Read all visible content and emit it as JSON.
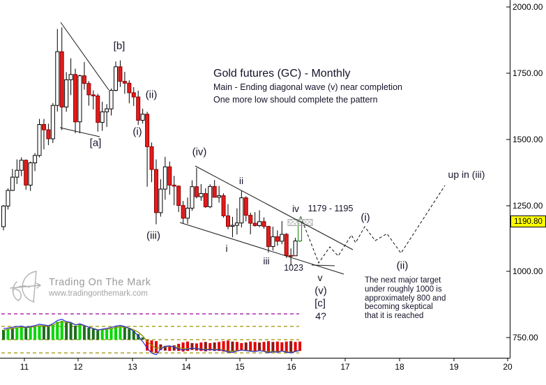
{
  "header": {
    "title": "Gold futures (GC) - Monthly",
    "subtitle1": "Main - Ending diagonal wave (v) near completion",
    "subtitle2": "One more low should complete the pattern",
    "text_color": "#14142a"
  },
  "watermark": {
    "name": "Trading On The Mark",
    "url": "www.tradingonthemark.com",
    "color": "#9a9a9a"
  },
  "price_axis": {
    "ticks": [
      "2000.00",
      "1750.00",
      "1500.00",
      "1250.00",
      "1000.00",
      "750.00"
    ],
    "last_price": "1190.80",
    "last_price_bg": "#ffff00"
  },
  "time_axis": {
    "ticks": [
      "11",
      "12",
      "13",
      "14",
      "15",
      "16",
      "17",
      "18",
      "19",
      "20"
    ]
  },
  "note": {
    "lines": [
      "The next major target",
      "under roughly 1000 is",
      "approximately 800 and",
      "becoming skeptical",
      "that it is reached"
    ]
  },
  "colors": {
    "up_fill": "#ffffff",
    "up_stroke": "#000000",
    "down_fill": "#e51c1c",
    "down_stroke": "#8b0000",
    "current_stroke": "#0b8a0b",
    "wick": "#000000",
    "trendline": "#1a1a1a",
    "projection": "#222222",
    "hatch_box_border": "#a9a9a9",
    "hatch_box_line": "#c4c4c4",
    "ind_green_bright": "#00d800",
    "ind_green_dark": "#1d6e1d",
    "ind_red_bright": "#e40000",
    "ind_red_dark": "#8c1717",
    "ind_blue_line": "#2b2bd4",
    "ind_olive_line": "#8f8f00",
    "thr_purple": "#9c009c",
    "thr_olive": "#9c9000",
    "axis": "#000000",
    "label_color": "#14142a"
  },
  "chart_data": {
    "type": "candlestick+histogram",
    "title": "Gold futures (GC) - Monthly",
    "ylabel": "price",
    "y_ticks": [
      2000,
      1750,
      1500,
      1250,
      1000,
      750
    ],
    "x_tick_years": [
      11,
      12,
      13,
      14,
      15,
      16,
      17,
      18,
      19,
      20
    ],
    "ohlc_monthly": [
      [
        1170,
        1252,
        1156,
        1248
      ],
      [
        1248,
        1315,
        1235,
        1307
      ],
      [
        1307,
        1388,
        1305,
        1357
      ],
      [
        1357,
        1424,
        1331,
        1383
      ],
      [
        1383,
        1432,
        1361,
        1421
      ],
      [
        1421,
        1424,
        1309,
        1327
      ],
      [
        1327,
        1416,
        1305,
        1411
      ],
      [
        1411,
        1448,
        1380,
        1439
      ],
      [
        1439,
        1577,
        1432,
        1556
      ],
      [
        1556,
        1577,
        1462,
        1536
      ],
      [
        1536,
        1559,
        1478,
        1502
      ],
      [
        1502,
        1637,
        1486,
        1628
      ],
      [
        1628,
        1917,
        1605,
        1831
      ],
      [
        1831,
        1923,
        1535,
        1622
      ],
      [
        1622,
        1754,
        1604,
        1725
      ],
      [
        1725,
        1806,
        1667,
        1745
      ],
      [
        1745,
        1767,
        1523,
        1566
      ],
      [
        1566,
        1744,
        1523,
        1740
      ],
      [
        1740,
        1792,
        1688,
        1711
      ],
      [
        1711,
        1720,
        1627,
        1668
      ],
      [
        1668,
        1685,
        1613,
        1664
      ],
      [
        1664,
        1672,
        1529,
        1564
      ],
      [
        1564,
        1642,
        1532,
        1604
      ],
      [
        1604,
        1633,
        1547,
        1615
      ],
      [
        1615,
        1692,
        1590,
        1685
      ],
      [
        1685,
        1794,
        1681,
        1774
      ],
      [
        1774,
        1798,
        1698,
        1719
      ],
      [
        1719,
        1755,
        1672,
        1712
      ],
      [
        1712,
        1723,
        1636,
        1676
      ],
      [
        1676,
        1697,
        1626,
        1660
      ],
      [
        1660,
        1684,
        1554,
        1572
      ],
      [
        1572,
        1616,
        1560,
        1595
      ],
      [
        1595,
        1604,
        1321,
        1472
      ],
      [
        1472,
        1488,
        1338,
        1386
      ],
      [
        1386,
        1424,
        1179,
        1223
      ],
      [
        1223,
        1349,
        1208,
        1312
      ],
      [
        1312,
        1434,
        1272,
        1396
      ],
      [
        1396,
        1416,
        1291,
        1327
      ],
      [
        1327,
        1362,
        1251,
        1323
      ],
      [
        1323,
        1326,
        1225,
        1250
      ],
      [
        1250,
        1267,
        1181,
        1202
      ],
      [
        1202,
        1280,
        1181,
        1240
      ],
      [
        1240,
        1345,
        1230,
        1321
      ],
      [
        1321,
        1392,
        1277,
        1283
      ],
      [
        1283,
        1331,
        1268,
        1295
      ],
      [
        1295,
        1315,
        1241,
        1245
      ],
      [
        1245,
        1330,
        1240,
        1322
      ],
      [
        1322,
        1346,
        1280,
        1281
      ],
      [
        1281,
        1324,
        1261,
        1287
      ],
      [
        1287,
        1296,
        1204,
        1211
      ],
      [
        1211,
        1255,
        1160,
        1171
      ],
      [
        1171,
        1207,
        1130,
        1175
      ],
      [
        1175,
        1239,
        1140,
        1184
      ],
      [
        1184,
        1307,
        1167,
        1279
      ],
      [
        1279,
        1285,
        1190,
        1213
      ],
      [
        1213,
        1223,
        1141,
        1183
      ],
      [
        1183,
        1225,
        1170,
        1174
      ],
      [
        1174,
        1232,
        1168,
        1189
      ],
      [
        1189,
        1205,
        1162,
        1171
      ],
      [
        1171,
        1173,
        1072,
        1095
      ],
      [
        1095,
        1170,
        1080,
        1132
      ],
      [
        1132,
        1156,
        1098,
        1115
      ],
      [
        1115,
        1191,
        1104,
        1141
      ],
      [
        1141,
        1146,
        1052,
        1061
      ],
      [
        1061,
        1088,
        1023,
        1060
      ],
      [
        1060,
        1128,
        1060,
        1116
      ],
      [
        1116,
        1205,
        1112,
        1190.8
      ]
    ],
    "annotations": [
      {
        "text": "[b]",
        "x": 171,
        "y": 66,
        "size": 15
      },
      {
        "text": "(ii)",
        "x": 217,
        "y": 136,
        "size": 15
      },
      {
        "text": "(i)",
        "x": 197,
        "y": 189,
        "size": 15
      },
      {
        "text": "[a]",
        "x": 137,
        "y": 205,
        "size": 15
      },
      {
        "text": "(iv)",
        "x": 286,
        "y": 218,
        "size": 15
      },
      {
        "text": "ii",
        "x": 346,
        "y": 259,
        "size": 14
      },
      {
        "text": "(iii)",
        "x": 220,
        "y": 338,
        "size": 15
      },
      {
        "text": "i",
        "x": 325,
        "y": 356,
        "size": 14
      },
      {
        "text": "iii",
        "x": 382,
        "y": 374,
        "size": 14
      },
      {
        "text": "iv",
        "x": 424,
        "y": 299,
        "size": 14
      },
      {
        "text": "1179 - 1195",
        "x": 474,
        "y": 299,
        "size": 12.5
      },
      {
        "text": "1023",
        "x": 421,
        "y": 384,
        "size": 12.5
      },
      {
        "text": "v",
        "x": 459,
        "y": 398,
        "size": 14
      },
      {
        "text": "(v)",
        "x": 460,
        "y": 417,
        "size": 15
      },
      {
        "text": "[c]",
        "x": 459,
        "y": 435,
        "size": 15
      },
      {
        "text": "4?",
        "x": 460,
        "y": 453,
        "size": 14
      },
      {
        "text": "(i)",
        "x": 524,
        "y": 312,
        "size": 15
      },
      {
        "text": "(ii)",
        "x": 577,
        "y": 381,
        "size": 15
      },
      {
        "text": "up in (iii)",
        "x": 669,
        "y": 250,
        "size": 14
      }
    ],
    "trendlines": [
      [
        [
          87,
          32
        ],
        [
          156,
          129
        ]
      ],
      [
        [
          86,
          183
        ],
        [
          143,
          196
        ]
      ],
      [
        [
          280,
          238
        ],
        [
          506,
          358
        ]
      ],
      [
        [
          258,
          319
        ],
        [
          493,
          393
        ]
      ],
      [
        [
          447,
          380
        ],
        [
          480,
          381
        ]
      ]
    ],
    "projection_path": [
      [
        431,
        310
      ],
      [
        457,
        377
      ],
      [
        473,
        354
      ],
      [
        485,
        367
      ],
      [
        504,
        337
      ],
      [
        510,
        348
      ],
      [
        523,
        325
      ],
      [
        538,
        345
      ],
      [
        555,
        335
      ],
      [
        575,
        363
      ],
      [
        638,
        266
      ]
    ],
    "target_box": {
      "label": "1179 - 1195",
      "price_low": 1179,
      "price_high": 1195
    },
    "indicator": {
      "baseline_note": "oscillator histogram under price panel",
      "hi": [
        0.52,
        0.58,
        0.62,
        0.65,
        0.68,
        0.62,
        0.66,
        0.7,
        0.76,
        0.73,
        0.7,
        0.8,
        0.95,
        1.0,
        0.92,
        0.88,
        0.74,
        0.78,
        0.72,
        0.63,
        0.56,
        0.48,
        0.52,
        0.56,
        0.61,
        0.68,
        0.72,
        0.66,
        0.58,
        0.48,
        0.3,
        0.12,
        0.0,
        -0.04,
        -0.08,
        -0.25,
        -0.33,
        -0.35,
        -0.3,
        -0.22,
        -0.15,
        -0.1,
        -0.18,
        -0.2,
        -0.15,
        -0.12,
        -0.18,
        -0.15,
        -0.12,
        -0.08,
        -0.05,
        -0.1,
        -0.12,
        -0.18,
        -0.15,
        -0.1,
        -0.12,
        -0.15,
        -0.12,
        -0.08,
        -0.12,
        -0.1,
        -0.14,
        -0.1,
        -0.08,
        -0.12,
        -0.1
      ],
      "lo": [
        0,
        0,
        0,
        0,
        0,
        0,
        0,
        0,
        0,
        0,
        0,
        0,
        0,
        0,
        0,
        0,
        0,
        0,
        0,
        0,
        0,
        0,
        0,
        0,
        0,
        0,
        0,
        0,
        0,
        0,
        0,
        0,
        -0.58,
        -0.66,
        -0.7,
        -0.55,
        -0.58,
        -0.6,
        -0.58,
        -0.6,
        -0.63,
        -0.6,
        -0.55,
        -0.58,
        -0.6,
        -0.62,
        -0.58,
        -0.6,
        -0.6,
        -0.63,
        -0.68,
        -0.64,
        -0.6,
        -0.56,
        -0.6,
        -0.63,
        -0.63,
        -0.6,
        -0.63,
        -0.7,
        -0.64,
        -0.66,
        -0.6,
        -0.68,
        -0.7,
        -0.64,
        -0.6
      ],
      "blue": [
        0.58,
        0.62,
        0.66,
        0.7,
        0.72,
        0.66,
        0.7,
        0.75,
        0.82,
        0.78,
        0.74,
        0.85,
        1.02,
        1.08,
        0.96,
        0.92,
        0.78,
        0.84,
        0.76,
        0.66,
        0.58,
        0.5,
        0.56,
        0.6,
        0.65,
        0.72,
        0.76,
        0.7,
        0.6,
        0.45,
        0.2,
        -0.1,
        -0.45,
        -0.72,
        -0.8,
        -0.5,
        -0.35,
        -0.33,
        -0.4,
        -0.5,
        -0.55,
        -0.52,
        -0.45,
        -0.48,
        -0.52,
        -0.55,
        -0.52,
        -0.55,
        -0.53,
        -0.58,
        -0.65,
        -0.68,
        -0.6,
        -0.55,
        -0.58,
        -0.62,
        -0.63,
        -0.58,
        -0.62,
        -0.7,
        -0.64,
        -0.67,
        -0.6,
        -0.67,
        -0.7,
        -0.63,
        -0.55
      ],
      "olive": [
        0.5,
        0.55,
        0.6,
        0.63,
        0.66,
        0.64,
        0.66,
        0.69,
        0.74,
        0.73,
        0.71,
        0.77,
        0.88,
        0.95,
        0.92,
        0.89,
        0.8,
        0.79,
        0.74,
        0.67,
        0.6,
        0.53,
        0.53,
        0.55,
        0.59,
        0.64,
        0.68,
        0.66,
        0.61,
        0.53,
        0.4,
        0.2,
        -0.1,
        -0.3,
        -0.45,
        -0.44,
        -0.38,
        -0.36,
        -0.38,
        -0.42,
        -0.47,
        -0.48,
        -0.46,
        -0.47,
        -0.5,
        -0.52,
        -0.51,
        -0.52,
        -0.52,
        -0.55,
        -0.6,
        -0.62,
        -0.58,
        -0.55,
        -0.57,
        -0.6,
        -0.61,
        -0.58,
        -0.6,
        -0.65,
        -0.62,
        -0.64,
        -0.6,
        -0.64,
        -0.67,
        -0.62,
        -0.58
      ],
      "shade_pattern": "dbdbbdbbbddbbbdddbddddbbbbbdddddbbbddbdbbbdbbdbdbbbdbbdbbdbbdbbbdbb"
    }
  }
}
